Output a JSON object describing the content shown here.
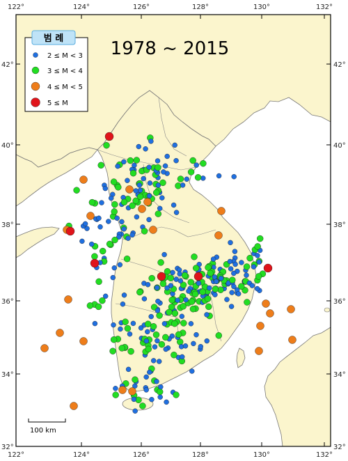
{
  "title": "1978 ~ 2015",
  "legend": {
    "title": "범 례",
    "items": [
      {
        "label": "2 ≤ M < 3",
        "color": "#1f6fe0"
      },
      {
        "label": "3 ≤ M < 4",
        "color": "#22dd22"
      },
      {
        "label": "4 ≤ M < 5",
        "color": "#ee7d1a"
      },
      {
        "label": "5 ≤ M",
        "color": "#e0141a"
      }
    ]
  },
  "axes": {
    "lon_ticks": [
      "122°",
      "124°",
      "126°",
      "128°",
      "130°",
      "132°"
    ],
    "lat_ticks": [
      "42°",
      "40°",
      "38°",
      "36°",
      "34°",
      "32°"
    ]
  },
  "scale_bar": {
    "label": "100 km"
  },
  "colors": {
    "sea": "#ffffff",
    "land": "#fbf5cd",
    "coast": "#777777"
  }
}
